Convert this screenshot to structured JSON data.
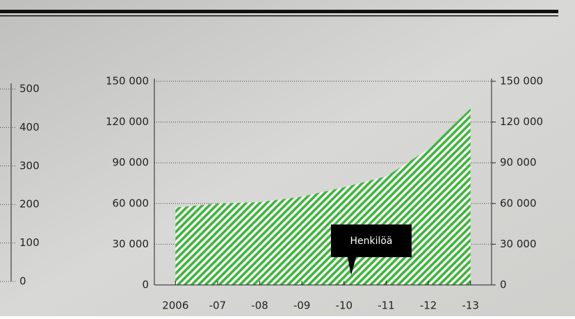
{
  "chart_data": [
    {
      "type": "area",
      "categories": [
        "2006",
        "-07",
        "-08",
        "-09",
        "-10",
        "-11",
        "-12",
        "-13"
      ],
      "values": [
        57000,
        60000,
        61000,
        65000,
        72000,
        80000,
        100000,
        130000
      ],
      "color": "#3cb43c",
      "annotation": "Henkilöä",
      "ylim": [
        0,
        150000
      ],
      "yticks": [
        0,
        {
          "value": 30000,
          "label": "30 000"
        },
        {
          "value": 60000,
          "label": "60 000"
        },
        {
          "value": 90000,
          "label": "90 000"
        },
        {
          "value": 120000,
          "label": "120 000"
        },
        {
          "value": 150000,
          "label": "150 000"
        }
      ],
      "y2lim": [
        0,
        150000
      ],
      "y2ticks": [
        0,
        {
          "value": 30000,
          "label": "30 000"
        },
        {
          "value": 60000,
          "label": "60 000"
        },
        {
          "value": 90000,
          "label": "90 000"
        },
        {
          "value": 120000,
          "label": "120 000"
        },
        {
          "value": 150000,
          "label": "150 000"
        }
      ],
      "grid": true
    },
    {
      "type": "axis",
      "ylim": [
        0,
        500
      ],
      "yticks": [
        0,
        100,
        200,
        300,
        400,
        500
      ]
    }
  ]
}
